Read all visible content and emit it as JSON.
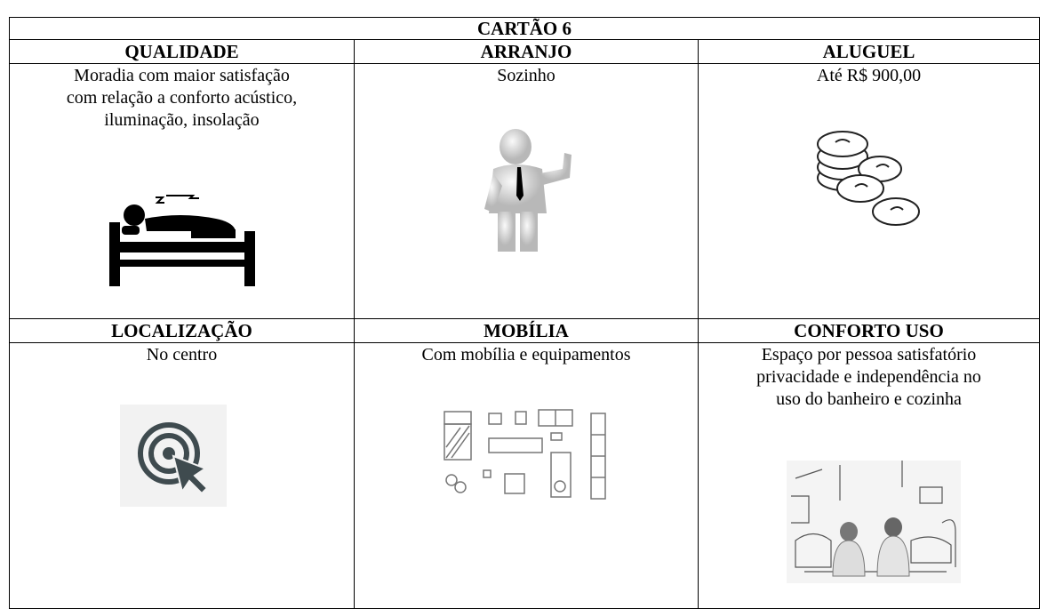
{
  "title": "CARTÃO 6",
  "cells": [
    {
      "header": "QUALIDADE",
      "lines": [
        "Moradia com maior satisfação",
        "com relação a conforto acústico,",
        "iluminação, insolação"
      ]
    },
    {
      "header": "ARRANJO",
      "lines": [
        "Sozinho"
      ]
    },
    {
      "header": "ALUGUEL",
      "lines": [
        "Até R$ 900,00"
      ]
    },
    {
      "header": "LOCALIZAÇÃO",
      "lines": [
        "No centro"
      ]
    },
    {
      "header": "MOBÍLIA",
      "lines": [
        "Com mobília e equipamentos"
      ]
    },
    {
      "header": "CONFORTO USO",
      "lines": [
        "Espaço por pessoa satisfatório",
        "privacidade e independência no",
        "uso do banheiro e cozinha"
      ]
    }
  ]
}
